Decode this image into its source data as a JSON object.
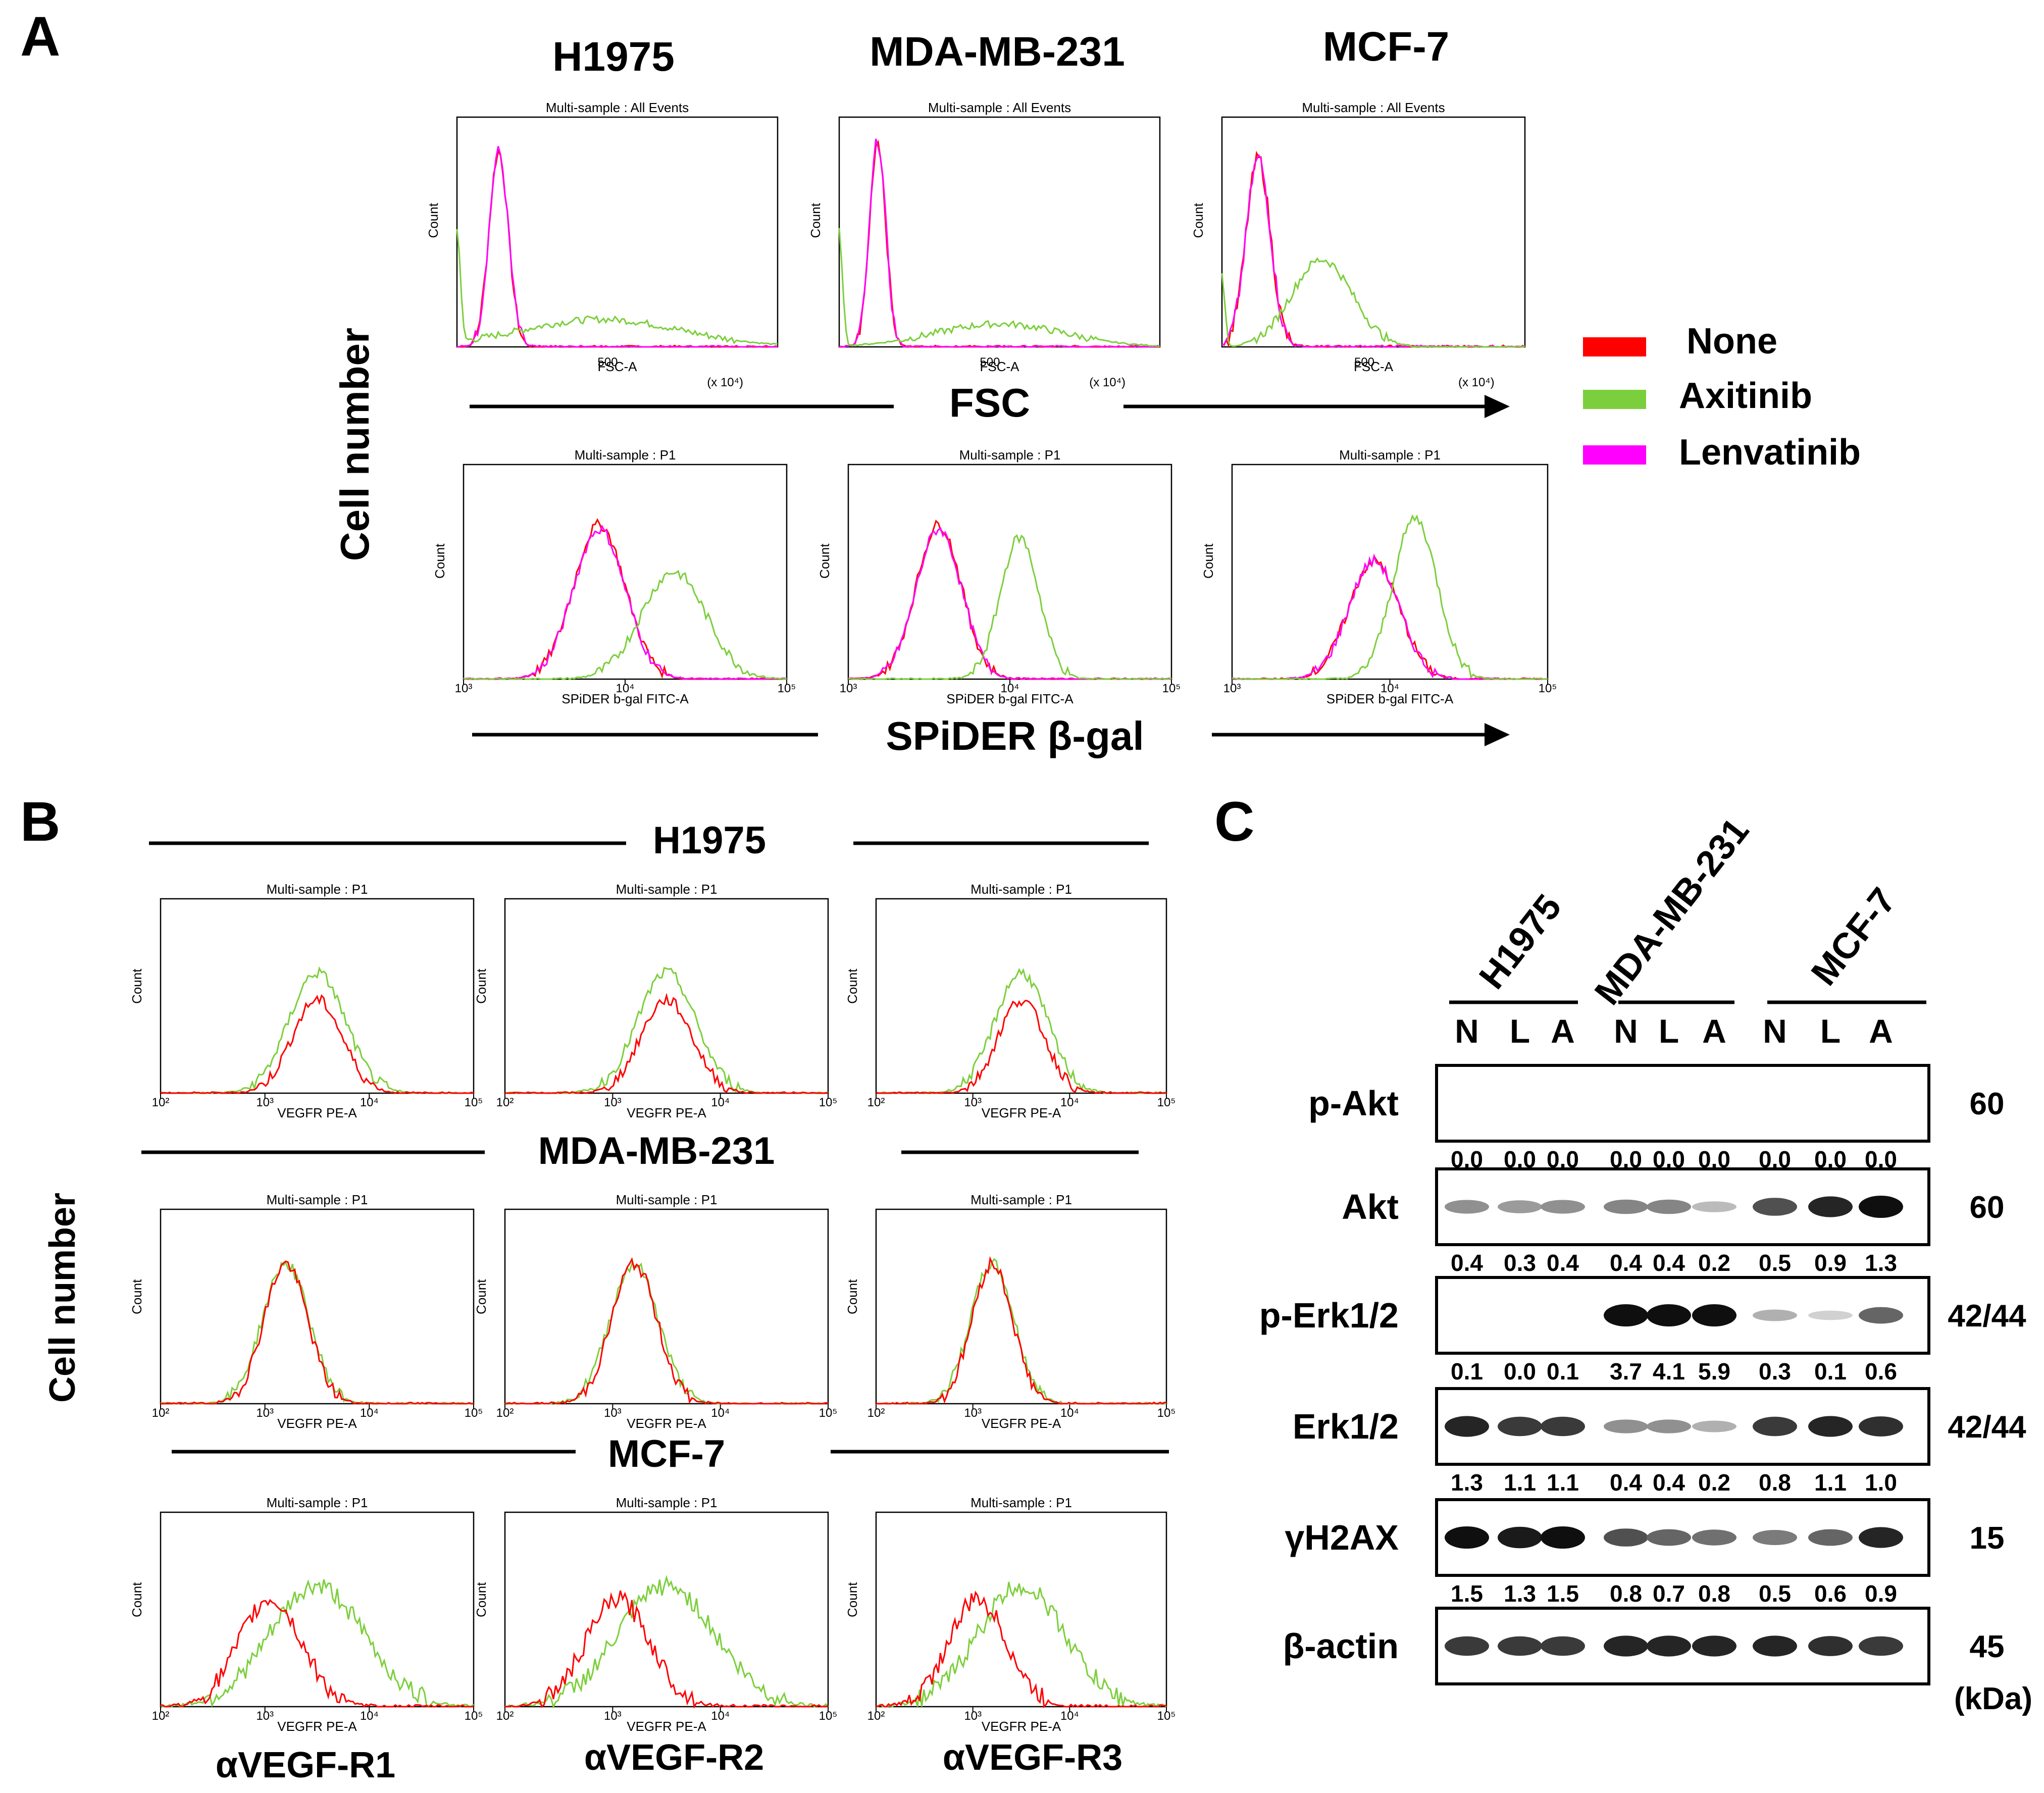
{
  "panel_labels": {
    "a": "A",
    "b": "B",
    "c": "C"
  },
  "y_axis_label": "Cell number",
  "panel_a": {
    "cell_lines": [
      "H1975",
      "MDA-MB-231",
      "MCF-7"
    ],
    "fsc_plot_title": "Multi-sample : All Events",
    "fsc_axis_label": "FSC-A",
    "fsc_axis_unit": "(x 10⁴)",
    "fsc_caption": "FSC",
    "spider_plot_title": "Multi-sample : P1",
    "spider_axis_label": "SPiDER b-gal FITC-A",
    "spider_caption": "SPiDER β-gal",
    "count_label": "Count",
    "legend": [
      {
        "label": "None",
        "color": "#ff0000"
      },
      {
        "label": "Axitinib",
        "color": "#7ccf3c"
      },
      {
        "label": "Lenvatinib",
        "color": "#ff00ff"
      }
    ]
  },
  "panel_b": {
    "row_titles": [
      "H1975",
      "MDA-MB-231",
      "MCF-7"
    ],
    "plot_title": "Multi-sample : P1",
    "x_axis_label": "VEGFR PE-A",
    "count_label": "Count",
    "column_labels": [
      "αVEGF-R1",
      "αVEGF-R2",
      "αVEGF-R3"
    ]
  },
  "panel_c": {
    "groups": [
      "H1975",
      "MDA-MB-231",
      "MCF-7"
    ],
    "lanes": [
      "N",
      "L",
      "A",
      "N",
      "L",
      "A",
      "N",
      "L",
      "A"
    ],
    "kda_unit": "(kDa)",
    "blots": [
      {
        "name": "p-Akt",
        "kda": "60",
        "values": [
          "0.0",
          "0.0",
          "0.0",
          "0.0",
          "0.0",
          "0.0",
          "0.0",
          "0.0",
          "0.0"
        ]
      },
      {
        "name": "Akt",
        "kda": "60",
        "values": [
          "0.4",
          "0.3",
          "0.4",
          "0.4",
          "0.4",
          "0.2",
          "0.5",
          "0.9",
          "1.3"
        ]
      },
      {
        "name": "p-Erk1/2",
        "kda": "42/44",
        "values": [
          "0.1",
          "0.0",
          "0.1",
          "3.7",
          "4.1",
          "5.9",
          "0.3",
          "0.1",
          "0.6"
        ]
      },
      {
        "name": "Erk1/2",
        "kda": "42/44",
        "values": [
          "1.3",
          "1.1",
          "1.1",
          "0.4",
          "0.4",
          "0.2",
          "0.8",
          "1.1",
          "1.0"
        ]
      },
      {
        "name": "γH2AX",
        "kda": "15",
        "values": [
          "1.5",
          "1.3",
          "1.5",
          "0.8",
          "0.7",
          "0.8",
          "0.5",
          "0.6",
          "0.9"
        ]
      },
      {
        "name": "β-actin",
        "kda": "45",
        "values": []
      }
    ]
  }
}
